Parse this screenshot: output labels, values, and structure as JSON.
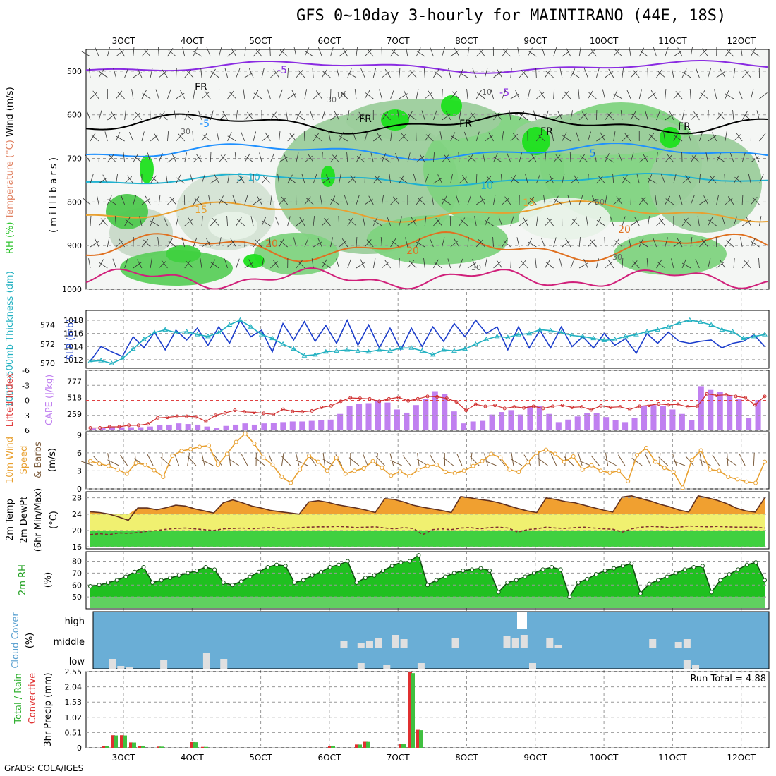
{
  "title": "GFS 0~10day 3-hourly for MAINTIRANO (44E, 18S)",
  "footer": "GrADS: COLA/IGES",
  "chart_data": [
    {
      "panel": "upper-air",
      "type": "heatmap",
      "ylabel_parts": [
        "RH (%)",
        "Temperature (°C)",
        "Wind (m/s)"
      ],
      "ylabel_units": "( m i l l i b a r s )",
      "yticks": [
        "500",
        "600",
        "700",
        "800",
        "900",
        "1000"
      ],
      "x_dates": [
        "3OCT",
        "4OCT",
        "5OCT",
        "6OCT",
        "7OCT",
        "8OCT",
        "9OCT",
        "10OCT",
        "11OCT",
        "12OCT"
      ],
      "contour_labels": [
        "-5",
        "-5",
        "-5",
        "5",
        "5",
        "10",
        "10",
        "15",
        "15",
        "20",
        "20",
        "20",
        "FR",
        "FR",
        "FR",
        "FR",
        "FR"
      ],
      "rh_labels": [
        "30",
        "10",
        "10",
        "30",
        "50",
        "30",
        "30"
      ],
      "temperature_isotherms_C": [
        -5,
        5,
        10,
        15,
        20
      ]
    },
    {
      "panel": "slp-thickness",
      "type": "line",
      "ylabel_left": "1000~500mb Thickness (dm)",
      "ylabel_right": "SLP (mb)",
      "left_ticks": [
        "570",
        "572",
        "574"
      ],
      "right_ticks": [
        "1012",
        "1014",
        "1016",
        "1018"
      ],
      "series": [
        {
          "name": "SLP",
          "values": [
            1011.8,
            1014.0,
            1013.2,
            1012.5,
            1015.5,
            1013.8,
            1016.2,
            1013.5,
            1016.5,
            1015.0,
            1016.8,
            1014.2,
            1017.0,
            1014.5,
            1018.0,
            1015.5,
            1016.5,
            1013.2,
            1017.5,
            1015.0,
            1017.8,
            1014.8,
            1017.2,
            1014.5,
            1018.0,
            1014.2,
            1017.3,
            1013.8,
            1016.8,
            1013.5,
            1016.8,
            1014.0,
            1017.0,
            1014.8,
            1017.5,
            1015.5,
            1018.0,
            1016.0,
            1017.0,
            1013.5,
            1017.0,
            1013.8,
            1016.5,
            1013.8,
            1017.0,
            1014.0,
            1015.5,
            1013.8,
            1016.0,
            1014.2,
            1015.2,
            1013.0,
            1016.0,
            1014.5,
            1016.2,
            1014.8,
            1014.5,
            1014.8,
            1015.0,
            1013.8,
            1014.5,
            1014.8,
            1015.8,
            1014.0
          ]
        },
        {
          "name": "Thickness",
          "values": [
            570.2,
            570.3,
            570.0,
            570.5,
            571.5,
            572.5,
            573.2,
            573.5,
            573.2,
            573.3,
            573.0,
            572.8,
            573.2,
            574.0,
            574.5,
            573.8,
            573.0,
            572.6,
            572.0,
            571.5,
            570.8,
            570.9,
            571.2,
            571.3,
            571.4,
            571.3,
            571.2,
            571.4,
            571.3,
            571.6,
            571.6,
            571.3,
            570.9,
            571.4,
            571.3,
            571.5,
            572.0,
            572.5,
            572.8,
            572.7,
            573.0,
            573.1,
            573.5,
            573.4,
            573.2,
            572.9,
            572.8,
            572.6,
            572.4,
            572.5,
            572.8,
            573.0,
            573.3,
            573.5,
            573.8,
            574.2,
            574.5,
            574.3,
            574.0,
            573.5,
            573.3,
            572.6,
            572.8,
            573.0
          ]
        }
      ]
    },
    {
      "panel": "cape-li",
      "type": "bar",
      "ylabel_left": "Lifted Index",
      "ylabel_right": "CAPE (J/kg)",
      "li_ticks": [
        "-6",
        "-3",
        "0",
        "3",
        "6"
      ],
      "cape_ticks": [
        "777",
        "518",
        "259"
      ],
      "series": [
        {
          "name": "CAPE",
          "values": [
            30,
            40,
            60,
            50,
            50,
            50,
            60,
            80,
            90,
            110,
            100,
            90,
            60,
            40,
            70,
            90,
            110,
            90,
            110,
            120,
            130,
            140,
            140,
            150,
            160,
            170,
            260,
            390,
            420,
            430,
            480,
            440,
            330,
            280,
            400,
            500,
            620,
            580,
            300,
            110,
            140,
            150,
            250,
            290,
            320,
            250,
            380,
            380,
            260,
            130,
            170,
            220,
            270,
            270,
            210,
            160,
            130,
            200,
            380,
            400,
            390,
            330,
            260,
            160,
            700,
            640,
            610,
            560,
            490,
            190,
            480
          ]
        },
        {
          "name": "Lifted Index",
          "values": [
            5.5,
            5.5,
            5.3,
            5.3,
            5.0,
            5.0,
            4.7,
            3.5,
            3.4,
            3.2,
            3.2,
            3.3,
            4.2,
            3.0,
            2.5,
            2.0,
            2.3,
            2.4,
            2.6,
            2.8,
            1.8,
            2.2,
            2.3,
            2.1,
            1.4,
            1.1,
            0.2,
            -0.5,
            -0.4,
            -0.3,
            0.2,
            -0.3,
            -0.6,
            0.1,
            -0.3,
            -0.8,
            -0.7,
            -0.4,
            0.3,
            2.0,
            0.8,
            1.2,
            1.0,
            1.6,
            1.3,
            1.5,
            1.2,
            1.6,
            1.2,
            1.0,
            1.4,
            1.3,
            1.9,
            1.1,
            1.4,
            1.3,
            1.8,
            1.2,
            1.0,
            0.7,
            0.9,
            0.8,
            1.3,
            1.2,
            -1.3,
            -1.0,
            -1.1,
            -0.8,
            -0.5,
            0.9,
            -0.8
          ]
        }
      ]
    },
    {
      "panel": "wind10m",
      "type": "line",
      "ylabel_a": "10m Wind",
      "ylabel_b": "Speed",
      "ylabel_c": "& Barbs",
      "yunit": "(m/s)",
      "yticks": [
        "0",
        "3",
        "6",
        "9"
      ],
      "series": [
        {
          "name": "Speed",
          "values": [
            4.6,
            4.2,
            3.8,
            3.2,
            2.5,
            4.3,
            4.0,
            3.1,
            2.0,
            5.5,
            6.3,
            6.6,
            7.0,
            7.2,
            4.0,
            5.8,
            7.8,
            9.2,
            7.5,
            5.2,
            4.0,
            2.0,
            1.0,
            3.2,
            5.5,
            4.5,
            3.0,
            5.2,
            2.5,
            3.0,
            3.4,
            4.6,
            3.5,
            2.2,
            2.9,
            2.1,
            3.2,
            3.8,
            4.0,
            2.8,
            2.6,
            3.0,
            3.8,
            4.6,
            5.8,
            5.2,
            3.2,
            2.8,
            4.4,
            6.0,
            6.5,
            5.8,
            4.5,
            5.4,
            3.2,
            3.9,
            3.0,
            2.7,
            3.0,
            1.3,
            5.6,
            6.8,
            4.5,
            3.5,
            2.8,
            0.2,
            4.8,
            6.4,
            3.2,
            3.0,
            2.0,
            1.6,
            1.2,
            1.0,
            4.5
          ]
        }
      ]
    },
    {
      "panel": "temp2m",
      "type": "area",
      "ylabel_a": "2m Temp",
      "ylabel_b": "2m DewPt",
      "ylabel_c": "(6hr Min/Max)",
      "yunit": "(°C)",
      "yticks": [
        "16",
        "20",
        "24",
        "28"
      ],
      "series": [
        {
          "name": "Temp",
          "values": [
            24.6,
            24.4,
            24.0,
            23.3,
            22.5,
            25.5,
            25.5,
            25.1,
            25.6,
            26.2,
            26.0,
            25.3,
            24.8,
            24.3,
            26.8,
            27.5,
            26.8,
            26.0,
            25.5,
            24.9,
            24.6,
            24.3,
            24.0,
            27.0,
            27.3,
            26.9,
            26.3,
            25.9,
            25.5,
            25.0,
            24.4,
            27.8,
            27.6,
            27.0,
            26.2,
            25.7,
            25.3,
            24.9,
            24.4,
            28.3,
            28.0,
            27.6,
            27.3,
            26.8,
            26.1,
            25.4,
            24.8,
            24.4,
            28.0,
            27.6,
            27.1,
            26.8,
            26.2,
            25.6,
            25.0,
            24.5,
            28.2,
            28.5,
            27.8,
            27.2,
            26.4,
            25.8,
            25.0,
            24.5,
            28.5,
            28.0,
            27.4,
            26.6,
            25.5,
            24.8,
            24.5,
            28.0
          ]
        },
        {
          "name": "DewPt",
          "values": [
            19.0,
            19.2,
            19.0,
            19.4,
            19.3,
            19.5,
            19.8,
            20.0,
            20.3,
            20.5,
            20.6,
            20.4,
            20.2,
            20.0,
            20.4,
            20.5,
            20.6,
            20.4,
            20.6,
            20.7,
            20.5,
            20.6,
            20.7,
            20.8,
            20.9,
            20.9,
            21.0,
            20.9,
            20.7,
            20.8,
            20.9,
            20.6,
            20.4,
            20.7,
            20.5,
            19.0,
            20.2,
            20.4,
            20.2,
            20.6,
            20.7,
            20.4,
            20.7,
            20.8,
            20.6,
            19.6,
            20.2,
            20.4,
            20.8,
            20.6,
            20.5,
            20.7,
            20.8,
            20.6,
            20.4,
            20.3,
            19.6,
            20.4,
            20.8,
            21.0,
            20.9,
            20.7,
            20.8,
            21.1,
            21.0,
            20.9,
            21.0,
            20.9,
            20.8,
            20.8,
            20.8,
            20.6
          ]
        }
      ]
    },
    {
      "panel": "rh2m",
      "type": "area",
      "ylabel": "2m RH",
      "yunit": "(%)",
      "yticks": [
        "50",
        "60",
        "70",
        "80"
      ],
      "series": [
        {
          "name": "RH",
          "values": [
            59,
            60,
            62,
            64,
            67,
            71,
            75,
            62,
            64,
            66,
            68,
            70,
            72,
            75,
            73,
            62,
            60,
            63,
            67,
            71,
            75,
            77,
            76,
            62,
            64,
            68,
            71,
            75,
            77,
            80,
            62,
            66,
            68,
            72,
            76,
            79,
            80,
            85,
            60,
            64,
            67,
            70,
            72,
            73,
            74,
            72,
            54,
            62,
            64,
            67,
            70,
            73,
            75,
            73,
            50,
            62,
            65,
            69,
            72,
            74,
            76,
            78,
            53,
            61,
            64,
            67,
            70,
            73,
            75,
            76,
            54,
            64,
            69,
            73,
            77,
            79,
            64
          ]
        }
      ]
    },
    {
      "panel": "cloud",
      "type": "bar",
      "ylabel": "Cloud Cover",
      "yunit": "(%)",
      "yticks": [
        "high",
        "middle",
        "low"
      ]
    },
    {
      "panel": "precip",
      "type": "bar",
      "ylabel_a": "Total / Rain",
      "ylabel_b": "Convective",
      "ylabel_c": "3hr Precip (mm)",
      "yticks": [
        "0",
        "0.51",
        "1.02",
        "1.53",
        "2.04",
        "2.55"
      ],
      "run_total": "Run Total = 4.88"
    }
  ]
}
